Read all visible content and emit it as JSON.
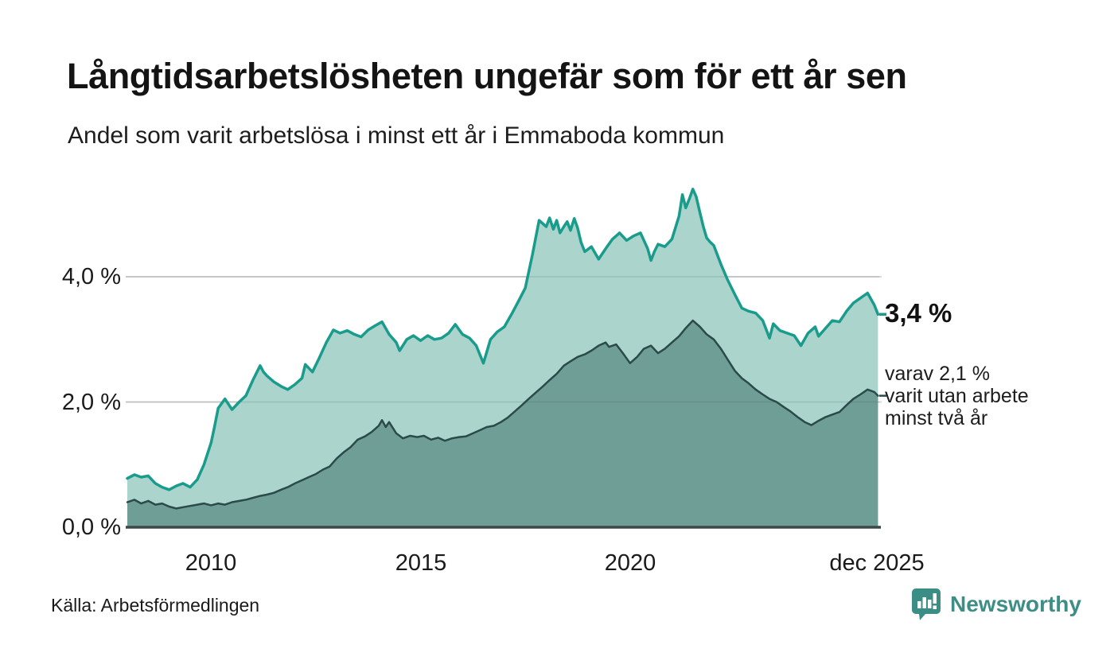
{
  "source": {
    "label": "Källa: Arbetsförmedlingen"
  },
  "logo": {
    "text": "Newsworthy"
  },
  "annotations": {
    "latest_value_label": "3,4 %",
    "secondary_lines": [
      "varav 2,1 %",
      "varit utan arbete",
      "minst två år"
    ]
  },
  "colors": {
    "accent_teal": "#1a9c8d",
    "light_fill": "#abd4cd",
    "dark_fill": "#6f9e96",
    "dark_stroke": "#2b4a4a",
    "grid": "#d8d8d8",
    "axis": "#3c4747",
    "brand": "#3e8e85",
    "text": "#161616"
  },
  "chart_data": {
    "type": "area",
    "title": "Långtidsarbetslösheten ungefär som för ett år sen",
    "subtitle": "Andel som varit arbetslösa i minst ett år i Emmaboda kommun",
    "unit": "%",
    "grid": "horizontal",
    "legend": "none",
    "x_axis": {
      "range": [
        2008.0,
        2025.95
      ],
      "ticks": [
        {
          "label": "2010",
          "year": 2010
        },
        {
          "label": "2015",
          "year": 2015
        },
        {
          "label": "2020",
          "year": 2020
        },
        {
          "label": "dec 2025",
          "year": 2025.9
        }
      ]
    },
    "y_axis": {
      "range": [
        0,
        5.6
      ],
      "ticks": [
        {
          "label": "4,0 %",
          "value": 4
        },
        {
          "label": "2,0 %",
          "value": 2
        },
        {
          "label": "0,0 %",
          "value": 0
        }
      ]
    },
    "series": [
      {
        "name": "Arbetslösa minst ett år",
        "latest_value": 3.4,
        "color": "#1a9c8d",
        "fill": "#abd4cd",
        "points": [
          [
            2008.0,
            0.78
          ],
          [
            2008.17,
            0.84
          ],
          [
            2008.33,
            0.8
          ],
          [
            2008.5,
            0.82
          ],
          [
            2008.67,
            0.7
          ],
          [
            2008.83,
            0.64
          ],
          [
            2009.0,
            0.6
          ],
          [
            2009.17,
            0.66
          ],
          [
            2009.33,
            0.7
          ],
          [
            2009.5,
            0.64
          ],
          [
            2009.67,
            0.76
          ],
          [
            2009.83,
            1.0
          ],
          [
            2010.0,
            1.35
          ],
          [
            2010.08,
            1.6
          ],
          [
            2010.17,
            1.9
          ],
          [
            2010.33,
            2.05
          ],
          [
            2010.5,
            1.88
          ],
          [
            2010.67,
            2.0
          ],
          [
            2010.83,
            2.1
          ],
          [
            2011.0,
            2.35
          ],
          [
            2011.17,
            2.58
          ],
          [
            2011.25,
            2.48
          ],
          [
            2011.33,
            2.42
          ],
          [
            2011.5,
            2.32
          ],
          [
            2011.67,
            2.25
          ],
          [
            2011.83,
            2.2
          ],
          [
            2012.0,
            2.28
          ],
          [
            2012.17,
            2.38
          ],
          [
            2012.25,
            2.6
          ],
          [
            2012.42,
            2.48
          ],
          [
            2012.58,
            2.7
          ],
          [
            2012.75,
            2.95
          ],
          [
            2012.92,
            3.15
          ],
          [
            2013.08,
            3.1
          ],
          [
            2013.25,
            3.14
          ],
          [
            2013.42,
            3.08
          ],
          [
            2013.58,
            3.04
          ],
          [
            2013.75,
            3.15
          ],
          [
            2013.92,
            3.22
          ],
          [
            2014.08,
            3.28
          ],
          [
            2014.25,
            3.08
          ],
          [
            2014.42,
            2.95
          ],
          [
            2014.5,
            2.82
          ],
          [
            2014.67,
            3.0
          ],
          [
            2014.83,
            3.06
          ],
          [
            2015.0,
            2.98
          ],
          [
            2015.17,
            3.06
          ],
          [
            2015.33,
            3.0
          ],
          [
            2015.5,
            3.02
          ],
          [
            2015.67,
            3.1
          ],
          [
            2015.83,
            3.24
          ],
          [
            2016.0,
            3.08
          ],
          [
            2016.17,
            3.02
          ],
          [
            2016.33,
            2.9
          ],
          [
            2016.5,
            2.62
          ],
          [
            2016.67,
            3.0
          ],
          [
            2016.83,
            3.12
          ],
          [
            2017.0,
            3.2
          ],
          [
            2017.17,
            3.4
          ],
          [
            2017.33,
            3.6
          ],
          [
            2017.5,
            3.82
          ],
          [
            2017.67,
            4.35
          ],
          [
            2017.83,
            4.9
          ],
          [
            2018.0,
            4.8
          ],
          [
            2018.08,
            4.94
          ],
          [
            2018.17,
            4.76
          ],
          [
            2018.25,
            4.9
          ],
          [
            2018.33,
            4.7
          ],
          [
            2018.42,
            4.8
          ],
          [
            2018.5,
            4.88
          ],
          [
            2018.58,
            4.74
          ],
          [
            2018.67,
            4.93
          ],
          [
            2018.75,
            4.78
          ],
          [
            2018.83,
            4.55
          ],
          [
            2018.92,
            4.4
          ],
          [
            2019.08,
            4.48
          ],
          [
            2019.25,
            4.28
          ],
          [
            2019.42,
            4.45
          ],
          [
            2019.58,
            4.6
          ],
          [
            2019.75,
            4.7
          ],
          [
            2019.92,
            4.58
          ],
          [
            2020.08,
            4.65
          ],
          [
            2020.25,
            4.7
          ],
          [
            2020.42,
            4.45
          ],
          [
            2020.5,
            4.26
          ],
          [
            2020.58,
            4.4
          ],
          [
            2020.67,
            4.52
          ],
          [
            2020.83,
            4.48
          ],
          [
            2021.0,
            4.6
          ],
          [
            2021.17,
            4.97
          ],
          [
            2021.25,
            5.31
          ],
          [
            2021.33,
            5.1
          ],
          [
            2021.42,
            5.25
          ],
          [
            2021.5,
            5.4
          ],
          [
            2021.58,
            5.28
          ],
          [
            2021.67,
            5.02
          ],
          [
            2021.75,
            4.8
          ],
          [
            2021.83,
            4.62
          ],
          [
            2021.92,
            4.55
          ],
          [
            2022.0,
            4.5
          ],
          [
            2022.17,
            4.2
          ],
          [
            2022.33,
            3.95
          ],
          [
            2022.5,
            3.72
          ],
          [
            2022.67,
            3.5
          ],
          [
            2022.83,
            3.45
          ],
          [
            2023.0,
            3.42
          ],
          [
            2023.17,
            3.3
          ],
          [
            2023.33,
            3.02
          ],
          [
            2023.42,
            3.25
          ],
          [
            2023.58,
            3.14
          ],
          [
            2023.75,
            3.1
          ],
          [
            2023.92,
            3.06
          ],
          [
            2024.08,
            2.9
          ],
          [
            2024.25,
            3.1
          ],
          [
            2024.42,
            3.2
          ],
          [
            2024.5,
            3.05
          ],
          [
            2024.67,
            3.18
          ],
          [
            2024.83,
            3.3
          ],
          [
            2025.0,
            3.28
          ],
          [
            2025.17,
            3.45
          ],
          [
            2025.33,
            3.58
          ],
          [
            2025.5,
            3.66
          ],
          [
            2025.67,
            3.74
          ],
          [
            2025.83,
            3.55
          ],
          [
            2025.92,
            3.4
          ]
        ]
      },
      {
        "name": "Varav arbetslösa minst två år",
        "latest_value": 2.1,
        "color": "#2b4a4a",
        "fill": "#6f9e96",
        "points": [
          [
            2008.0,
            0.4
          ],
          [
            2008.17,
            0.44
          ],
          [
            2008.33,
            0.38
          ],
          [
            2008.5,
            0.42
          ],
          [
            2008.67,
            0.36
          ],
          [
            2008.83,
            0.38
          ],
          [
            2009.0,
            0.33
          ],
          [
            2009.17,
            0.3
          ],
          [
            2009.33,
            0.32
          ],
          [
            2009.5,
            0.34
          ],
          [
            2009.67,
            0.36
          ],
          [
            2009.83,
            0.38
          ],
          [
            2010.0,
            0.35
          ],
          [
            2010.17,
            0.38
          ],
          [
            2010.33,
            0.36
          ],
          [
            2010.5,
            0.4
          ],
          [
            2010.67,
            0.42
          ],
          [
            2010.83,
            0.44
          ],
          [
            2011.0,
            0.47
          ],
          [
            2011.17,
            0.5
          ],
          [
            2011.33,
            0.52
          ],
          [
            2011.5,
            0.55
          ],
          [
            2011.67,
            0.6
          ],
          [
            2011.83,
            0.64
          ],
          [
            2012.0,
            0.7
          ],
          [
            2012.17,
            0.75
          ],
          [
            2012.33,
            0.8
          ],
          [
            2012.5,
            0.85
          ],
          [
            2012.67,
            0.92
          ],
          [
            2012.83,
            0.97
          ],
          [
            2013.0,
            1.1
          ],
          [
            2013.17,
            1.2
          ],
          [
            2013.33,
            1.28
          ],
          [
            2013.5,
            1.4
          ],
          [
            2013.67,
            1.45
          ],
          [
            2013.83,
            1.52
          ],
          [
            2014.0,
            1.62
          ],
          [
            2014.08,
            1.71
          ],
          [
            2014.17,
            1.6
          ],
          [
            2014.25,
            1.68
          ],
          [
            2014.42,
            1.5
          ],
          [
            2014.58,
            1.42
          ],
          [
            2014.75,
            1.46
          ],
          [
            2014.92,
            1.44
          ],
          [
            2015.08,
            1.46
          ],
          [
            2015.25,
            1.4
          ],
          [
            2015.42,
            1.43
          ],
          [
            2015.58,
            1.38
          ],
          [
            2015.75,
            1.42
          ],
          [
            2015.92,
            1.44
          ],
          [
            2016.08,
            1.45
          ],
          [
            2016.25,
            1.5
          ],
          [
            2016.42,
            1.55
          ],
          [
            2016.58,
            1.6
          ],
          [
            2016.75,
            1.62
          ],
          [
            2016.92,
            1.68
          ],
          [
            2017.08,
            1.75
          ],
          [
            2017.25,
            1.85
          ],
          [
            2017.42,
            1.95
          ],
          [
            2017.58,
            2.05
          ],
          [
            2017.75,
            2.15
          ],
          [
            2017.92,
            2.25
          ],
          [
            2018.08,
            2.35
          ],
          [
            2018.25,
            2.45
          ],
          [
            2018.42,
            2.58
          ],
          [
            2018.58,
            2.65
          ],
          [
            2018.75,
            2.72
          ],
          [
            2018.92,
            2.76
          ],
          [
            2019.08,
            2.82
          ],
          [
            2019.25,
            2.9
          ],
          [
            2019.42,
            2.95
          ],
          [
            2019.5,
            2.88
          ],
          [
            2019.67,
            2.92
          ],
          [
            2019.83,
            2.78
          ],
          [
            2020.0,
            2.62
          ],
          [
            2020.17,
            2.72
          ],
          [
            2020.33,
            2.85
          ],
          [
            2020.5,
            2.9
          ],
          [
            2020.67,
            2.78
          ],
          [
            2020.83,
            2.85
          ],
          [
            2021.0,
            2.95
          ],
          [
            2021.17,
            3.05
          ],
          [
            2021.33,
            3.18
          ],
          [
            2021.5,
            3.3
          ],
          [
            2021.67,
            3.2
          ],
          [
            2021.83,
            3.08
          ],
          [
            2022.0,
            3.0
          ],
          [
            2022.17,
            2.85
          ],
          [
            2022.33,
            2.68
          ],
          [
            2022.5,
            2.5
          ],
          [
            2022.67,
            2.38
          ],
          [
            2022.83,
            2.3
          ],
          [
            2023.0,
            2.2
          ],
          [
            2023.17,
            2.12
          ],
          [
            2023.33,
            2.05
          ],
          [
            2023.5,
            2.0
          ],
          [
            2023.67,
            1.92
          ],
          [
            2023.83,
            1.85
          ],
          [
            2024.0,
            1.76
          ],
          [
            2024.17,
            1.68
          ],
          [
            2024.33,
            1.63
          ],
          [
            2024.5,
            1.7
          ],
          [
            2024.67,
            1.76
          ],
          [
            2024.83,
            1.8
          ],
          [
            2025.0,
            1.84
          ],
          [
            2025.17,
            1.95
          ],
          [
            2025.33,
            2.05
          ],
          [
            2025.5,
            2.12
          ],
          [
            2025.67,
            2.2
          ],
          [
            2025.83,
            2.16
          ],
          [
            2025.92,
            2.1
          ]
        ]
      }
    ]
  }
}
